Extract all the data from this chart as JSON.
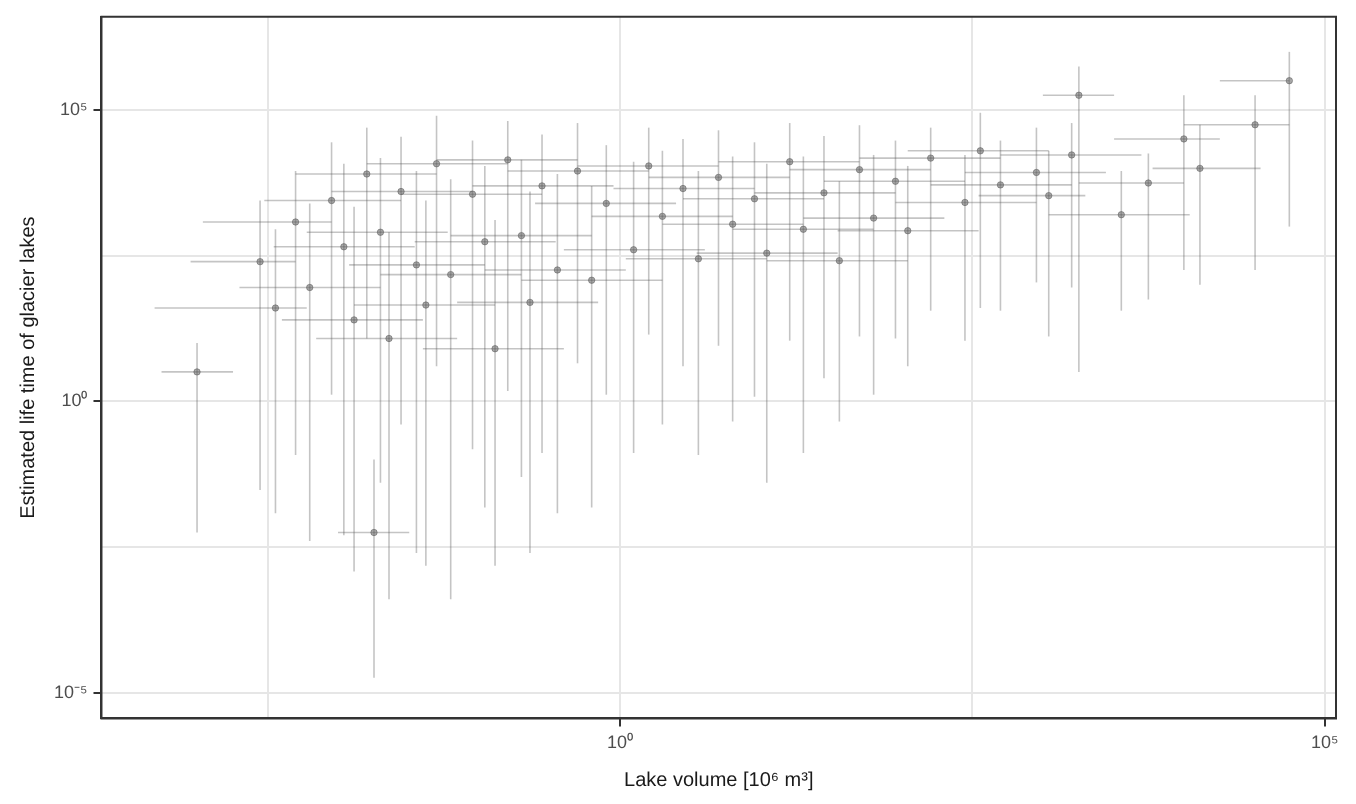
{
  "chart_data": {
    "type": "scatter",
    "xlabel": "Lake volume [10⁶ m³]",
    "ylabel": "Estimated life time of glacier lakes",
    "log": "xy",
    "grid": true,
    "marker": "circle",
    "legend": false,
    "xlim": [
      0.00021,
      120000.0
    ],
    "ylim": [
      3.6e-06,
      4000000.0
    ],
    "xticks": [
      {
        "value": 0.0032,
        "label": null
      },
      {
        "value": 1,
        "label": "10⁰"
      },
      {
        "value": 316,
        "label": null
      },
      {
        "value": 100000.0,
        "label": "10⁵"
      }
    ],
    "yticks": [
      {
        "value": 1e-05,
        "label": "10⁻⁵"
      },
      {
        "value": 0.0032,
        "label": null
      },
      {
        "value": 1,
        "label": "10⁰"
      },
      {
        "value": 316,
        "label": null
      },
      {
        "value": 100000.0,
        "label": "10⁵"
      }
    ],
    "series": [
      {
        "color": "#555555",
        "x": [
          0.0028,
          0.0036,
          0.005,
          0.0063,
          0.009,
          0.011,
          0.013,
          0.016,
          0.02,
          0.023,
          0.028,
          0.036,
          0.042,
          0.05,
          0.063,
          0.09,
          0.11,
          0.13,
          0.16,
          0.2,
          0.23,
          0.28,
          0.36,
          0.5,
          0.63,
          0.8,
          1.25,
          1.6,
          2,
          2.8,
          3.6,
          5,
          6.3,
          9,
          11,
          16,
          20,
          28,
          36,
          50,
          63,
          90,
          110,
          160,
          280,
          360,
          500,
          900,
          1100,
          1600,
          3600,
          0.001,
          0.018,
          1800,
          10000.0,
          32000.0,
          56000.0,
          13000.0,
          5600
        ],
        "values": [
          250,
          40,
          1200,
          90,
          2800,
          450,
          25,
          8000,
          800,
          12,
          4000,
          220,
          45,
          12000.0,
          150,
          3600,
          550,
          8,
          14000.0,
          700,
          50,
          5000,
          180,
          9000,
          120,
          2500,
          400,
          11000.0,
          1500,
          4500,
          280,
          7000,
          1100,
          3000,
          350,
          13000.0,
          900,
          3800,
          260,
          9500,
          1400,
          6000,
          850,
          15000.0,
          2600,
          20000.0,
          5200,
          8500,
          3400,
          17000.0,
          1600,
          3.2,
          0.0056,
          180000.0,
          32000.0,
          56000.0,
          320000.0,
          10000.0,
          5600
        ],
        "errors": [
          [
            0.03,
            2800
          ],
          [
            0.012,
            900
          ],
          [
            0.12,
            9000
          ],
          [
            0.004,
            2500
          ],
          [
            1.3,
            28000.0
          ],
          [
            0.005,
            12000.0
          ],
          [
            0.0012,
            2200
          ],
          [
            12,
            50000.0
          ],
          [
            0.04,
            15000.0
          ],
          [
            0.0004,
            800
          ],
          [
            0.4,
            35000.0
          ],
          [
            0.0025,
            9000
          ],
          [
            0.0015,
            2800
          ],
          [
            4,
            80000.0
          ],
          [
            0.0004,
            6500
          ],
          [
            0.15,
            30000.0
          ],
          [
            0.015,
            11000.0
          ],
          [
            0.0015,
            1300
          ],
          [
            1.5,
            65000.0
          ],
          [
            0.05,
            14000.0
          ],
          [
            0.0025,
            4000
          ],
          [
            0.13,
            38000.0
          ],
          [
            0.012,
            8000
          ],
          [
            4.5,
            60000.0
          ],
          [
            0.015,
            5000
          ],
          [
            1.3,
            25000.0
          ],
          [
            0.13,
            13000.0
          ],
          [
            14,
            50000.0
          ],
          [
            0.4,
            20000.0
          ],
          [
            4,
            32000.0
          ],
          [
            0.12,
            9000
          ],
          [
            9,
            45000.0
          ],
          [
            0.45,
            16000.0
          ],
          [
            1.2,
            28000.0
          ],
          [
            0.04,
            12000.0
          ],
          [
            11,
            60000.0
          ],
          [
            0.13,
            16000.0
          ],
          [
            2.5,
            36000.0
          ],
          [
            0.45,
            6000
          ],
          [
            13,
            55000.0
          ],
          [
            1.3,
            17000.0
          ],
          [
            12,
            30000.0
          ],
          [
            4,
            11000.0
          ],
          [
            36,
            50000.0
          ],
          [
            11,
            17000.0
          ],
          [
            40,
            90000.0
          ],
          [
            36,
            30000.0
          ],
          [
            110,
            50000.0
          ],
          [
            13,
            20000.0
          ],
          [
            90,
            60000.0
          ],
          [
            36,
            9000
          ],
          [
            0.0056,
            10
          ],
          [
            1.8e-05,
            0.1
          ],
          [
            3.2,
            560000.0
          ],
          [
            180,
            180000.0
          ],
          [
            180,
            180000.0
          ],
          [
            1000,
            1000000.0
          ],
          [
            100,
            56000.0
          ],
          [
            56,
            18000.0
          ]
        ],
        "xerrors": [
          [
            0.0009,
            0.005
          ],
          [
            0.0005,
            0.006
          ],
          [
            0.0011,
            0.009
          ],
          [
            0.002,
            0.02
          ],
          [
            0.003,
            0.028
          ],
          [
            0.0035,
            0.035
          ],
          [
            0.004,
            0.04
          ],
          [
            0.005,
            0.05
          ],
          [
            0.006,
            0.06
          ],
          [
            0.007,
            0.07
          ],
          [
            0.009,
            0.09
          ],
          [
            0.012,
            0.11
          ],
          [
            0.013,
            0.13
          ],
          [
            0.016,
            0.16
          ],
          [
            0.02,
            0.2
          ],
          [
            0.028,
            0.28
          ],
          [
            0.035,
            0.35
          ],
          [
            0.04,
            0.4
          ],
          [
            0.05,
            0.5
          ],
          [
            0.063,
            0.63
          ],
          [
            0.07,
            0.7
          ],
          [
            0.09,
            0.9
          ],
          [
            0.11,
            1.1
          ],
          [
            0.16,
            1.6
          ],
          [
            0.2,
            2
          ],
          [
            0.25,
            2.5
          ],
          [
            0.4,
            4
          ],
          [
            0.5,
            5
          ],
          [
            0.63,
            6.3
          ],
          [
            0.9,
            9
          ],
          [
            1.1,
            11
          ],
          [
            1.6,
            16
          ],
          [
            2,
            20
          ],
          [
            2.8,
            28
          ],
          [
            3.5,
            35
          ],
          [
            5,
            50
          ],
          [
            6.3,
            63
          ],
          [
            9,
            90
          ],
          [
            11,
            110
          ],
          [
            16,
            160
          ],
          [
            20,
            200
          ],
          [
            28,
            280
          ],
          [
            35,
            350
          ],
          [
            50,
            500
          ],
          [
            90,
            900
          ],
          [
            110,
            1100
          ],
          [
            160,
            1600
          ],
          [
            280,
            2800
          ],
          [
            350,
            2000
          ],
          [
            500,
            5000
          ],
          [
            1100,
            11000.0
          ],
          [
            0.00056,
            0.0018
          ],
          [
            0.01,
            0.032
          ],
          [
            1000,
            3200
          ],
          [
            3200,
            18000.0
          ],
          [
            10000.0,
            56000.0
          ],
          [
            18000.0,
            56000.0
          ],
          [
            6000,
            35000.0
          ],
          [
            1800,
            10000.0
          ]
        ]
      }
    ]
  }
}
